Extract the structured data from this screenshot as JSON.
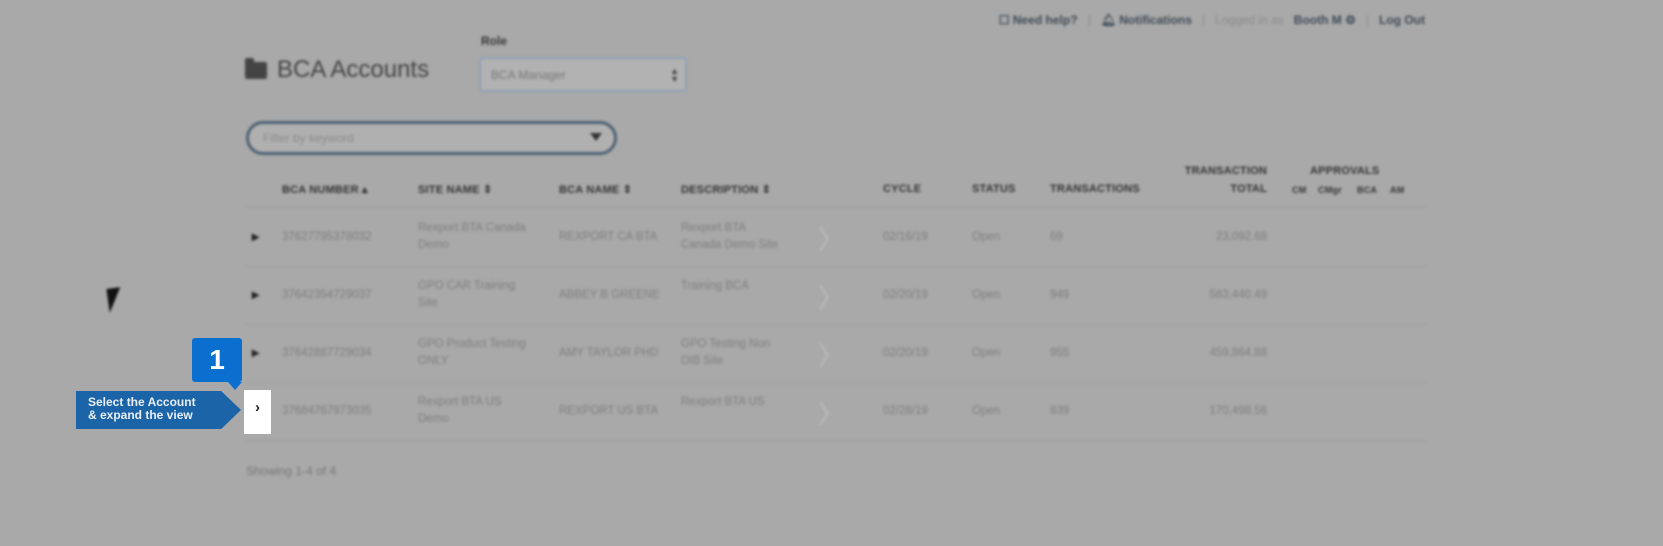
{
  "topbar": {
    "help": "Need help?",
    "notifications": "Notifications",
    "logged_in_prefix": "Logged in as",
    "user": "Booth M",
    "logout": "Log Out"
  },
  "page": {
    "title": "BCA Accounts",
    "role_label": "Role",
    "role_value": "BCA Manager",
    "filter_placeholder": "Filter by keyword"
  },
  "table": {
    "headers": {
      "number": "BCA NUMBER ▴",
      "site": "SITE NAME ⇕",
      "bca_name": "BCA NAME ⇕",
      "description": "DESCRIPTION ⇕",
      "cycle": "CYCLE",
      "status": "STATUS",
      "transactions": "TRANSACTIONS",
      "total_1": "TRANSACTION",
      "total_2": "TOTAL",
      "approvals": "APPROVALS",
      "approval_cols": [
        "CM",
        "CMgr",
        "BCA",
        "AM"
      ]
    },
    "rows": [
      {
        "number": "37627795378032",
        "site_1": "Rexport BTA Canada",
        "site_2": "Demo",
        "bca_name": "REXPORT CA BTA",
        "desc_1": "Rexport BTA",
        "desc_2": "Canada Demo Site",
        "cycle": "02/16/19",
        "status": "Open",
        "transactions": "69",
        "total": "23,092.68"
      },
      {
        "number": "37642354729037",
        "site_1": "GPO CAR Training",
        "site_2": "Site",
        "bca_name": "ABBEY B GREENE",
        "desc_1": "Training BCA",
        "desc_2": "",
        "cycle": "02/20/19",
        "status": "Open",
        "transactions": "949",
        "total": "583,440.49"
      },
      {
        "number": "37642887729034",
        "site_1": "GPO Product Testing",
        "site_2": "ONLY",
        "bca_name": "AMY TAYLOR PHD",
        "desc_1": "GPO Testing Non",
        "desc_2": "DIB Site",
        "cycle": "02/20/19",
        "status": "Open",
        "transactions": "955",
        "total": "459,864.88"
      },
      {
        "number": "37684767973035",
        "site_1": "Rexport BTA US",
        "site_2": "Demo",
        "bca_name": "REXPORT US BTA",
        "desc_1": "Rexport BTA US",
        "desc_2": "",
        "cycle": "02/28/19",
        "status": "Open",
        "transactions": "839",
        "total": "170,498.56"
      }
    ],
    "footer": "Showing 1-4 of 4"
  },
  "tutorial": {
    "step": "1",
    "callout_1": "Select the Account",
    "callout_2": "& expand the view",
    "accent": "#0b6fd0"
  }
}
